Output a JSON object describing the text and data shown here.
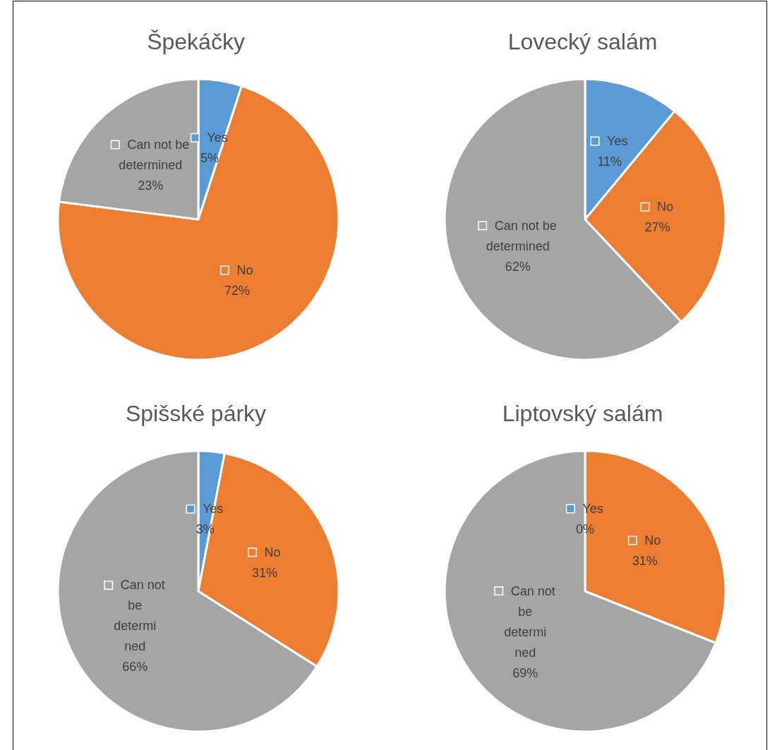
{
  "chart_data": [
    {
      "type": "pie",
      "title": "Špekáčky",
      "categories": [
        "Yes",
        "No",
        "Can not be determined"
      ],
      "values": [
        5,
        72,
        23
      ],
      "value_labels": [
        "5%",
        "72%",
        "23%"
      ],
      "colors": [
        "#5b9bd5",
        "#ed7d31",
        "#a5a5a5"
      ],
      "legend": "center"
    },
    {
      "type": "pie",
      "title": "Lovecký salám",
      "categories": [
        "Yes",
        "No",
        "Can not be determined"
      ],
      "values": [
        11,
        27,
        62
      ],
      "value_labels": [
        "11%",
        "27%",
        "62%"
      ],
      "colors": [
        "#5b9bd5",
        "#ed7d31",
        "#a5a5a5"
      ],
      "legend": "center"
    },
    {
      "type": "pie",
      "title": "Spišské párky",
      "categories": [
        "Yes",
        "No",
        "Can not be determined"
      ],
      "values": [
        3,
        31,
        66
      ],
      "value_labels": [
        "3%",
        "31%",
        "66%"
      ],
      "colors": [
        "#5b9bd5",
        "#ed7d31",
        "#a5a5a5"
      ],
      "legend": "center"
    },
    {
      "type": "pie",
      "title": "Liptovský salám",
      "categories": [
        "Yes",
        "No",
        "Can not be determined"
      ],
      "values": [
        0,
        31,
        69
      ],
      "value_labels": [
        "0%",
        "31%",
        "69%"
      ],
      "colors": [
        "#5b9bd5",
        "#ed7d31",
        "#a5a5a5"
      ],
      "legend": "center"
    }
  ]
}
